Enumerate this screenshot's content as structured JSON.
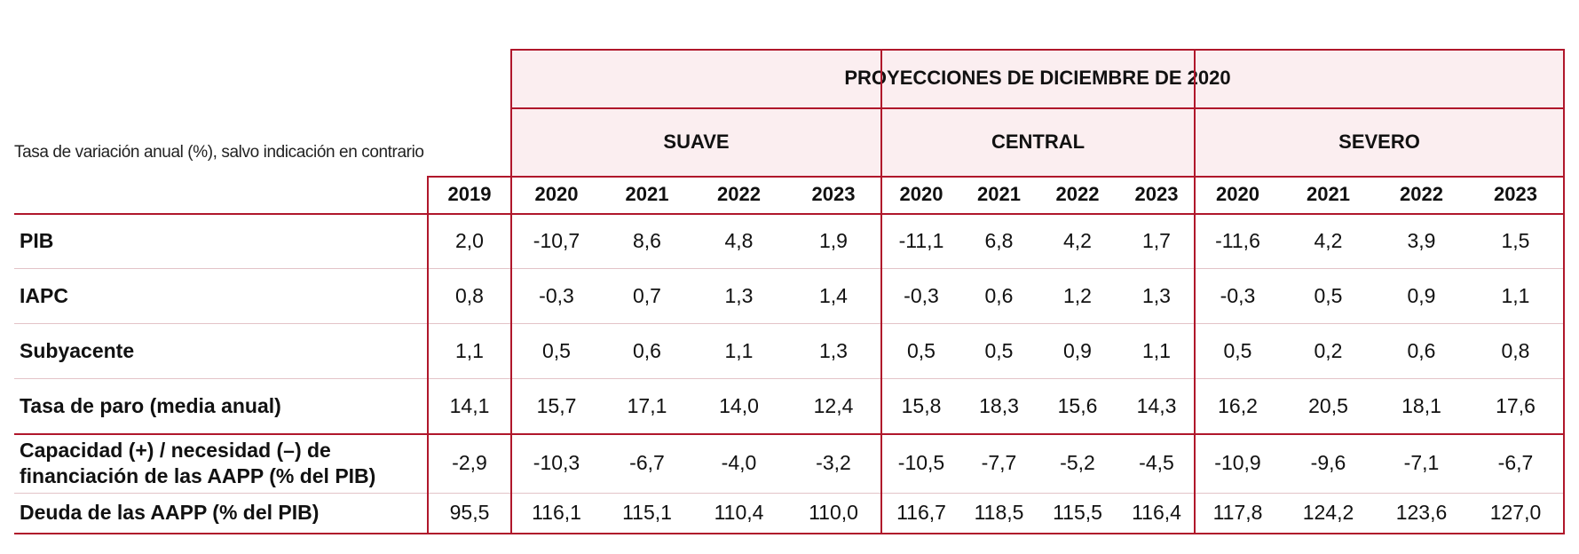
{
  "header": {
    "unit_note": "Tasa de variación anual (%), salvo indicación en contrario",
    "projection_title": "PROYECCIONES DE DICIEMBRE DE 2020",
    "scenarios": [
      "SUAVE",
      "CENTRAL",
      "SEVERO"
    ],
    "years": [
      "2019",
      "2020",
      "2021",
      "2022",
      "2023",
      "2020",
      "2021",
      "2022",
      "2023",
      "2020",
      "2021",
      "2022",
      "2023"
    ]
  },
  "rows": [
    {
      "label": "PIB",
      "values": [
        "2,0",
        "-10,7",
        "8,6",
        "4,8",
        "1,9",
        "-11,1",
        "6,8",
        "4,2",
        "1,7",
        "-11,6",
        "4,2",
        "3,9",
        "1,5"
      ]
    },
    {
      "label": "IAPC",
      "values": [
        "0,8",
        "-0,3",
        "0,7",
        "1,3",
        "1,4",
        "-0,3",
        "0,6",
        "1,2",
        "1,3",
        "-0,3",
        "0,5",
        "0,9",
        "1,1"
      ]
    },
    {
      "label": "Subyacente",
      "values": [
        "1,1",
        "0,5",
        "0,6",
        "1,1",
        "1,3",
        "0,5",
        "0,5",
        "0,9",
        "1,1",
        "0,5",
        "0,2",
        "0,6",
        "0,8"
      ]
    },
    {
      "label": "Tasa de paro (media anual)",
      "values": [
        "14,1",
        "15,7",
        "17,1",
        "14,0",
        "12,4",
        "15,8",
        "18,3",
        "15,6",
        "14,3",
        "16,2",
        "20,5",
        "18,1",
        "17,6"
      ]
    },
    {
      "label": "Capacidad (+) / necesidad (–) de financiación de las AAPP (% del PIB)",
      "values": [
        "-2,9",
        "-10,3",
        "-6,7",
        "-4,0",
        "-3,2",
        "-10,5",
        "-7,7",
        "-5,2",
        "-4,5",
        "-10,9",
        "-9,6",
        "-7,1",
        "-6,7"
      ]
    },
    {
      "label": "Deuda de las AAPP (% del PIB)",
      "values": [
        "95,5",
        "116,1",
        "115,1",
        "110,4",
        "110,0",
        "116,7",
        "118,5",
        "115,5",
        "116,4",
        "117,8",
        "124,2",
        "123,6",
        "127,0"
      ]
    }
  ],
  "colors": {
    "accent_red": "#b0172b",
    "header_fill": "#fbeef0",
    "row_divider": "#e3c3c8"
  }
}
